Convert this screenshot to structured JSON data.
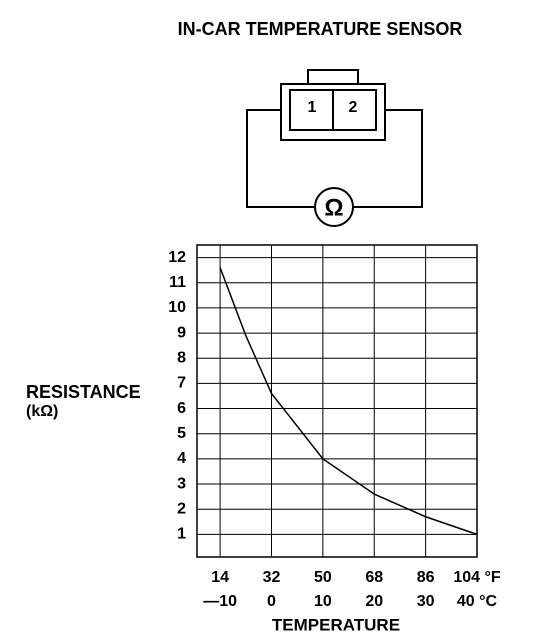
{
  "diagram": {
    "title": "IN-CAR TEMPERATURE SENSOR",
    "pins": [
      "1",
      "2"
    ],
    "meter": "Ω"
  },
  "chart_data": {
    "type": "line",
    "y_label": "RESISTANCE",
    "y_unit": "(kΩ)",
    "x_label": "TEMPERATURE",
    "x": [
      -10,
      -5,
      0,
      10,
      20,
      30,
      40
    ],
    "series": [
      {
        "name": "Resistance",
        "color": "#000000",
        "values": [
          11.6,
          8.9,
          6.6,
          4.0,
          2.6,
          1.7,
          1.0
        ]
      }
    ],
    "xlim": [
      -14.5,
      40
    ],
    "ylim": [
      0.1,
      12.5
    ],
    "xticks": [
      {
        "value": -10,
        "label": "—10"
      },
      0,
      10,
      20,
      30,
      {
        "value": 40,
        "label": "40 °C"
      }
    ],
    "xticks_f": [
      {
        "value": -10,
        "label": "14"
      },
      {
        "value": 0,
        "label": "32"
      },
      {
        "value": 10,
        "label": "50"
      },
      {
        "value": 20,
        "label": "68"
      },
      {
        "value": 30,
        "label": "86"
      },
      {
        "value": 40,
        "label": "104 °F"
      }
    ],
    "yticks": [
      1,
      2,
      3,
      4,
      5,
      6,
      7,
      8,
      9,
      10,
      11,
      12
    ],
    "grid": true
  }
}
